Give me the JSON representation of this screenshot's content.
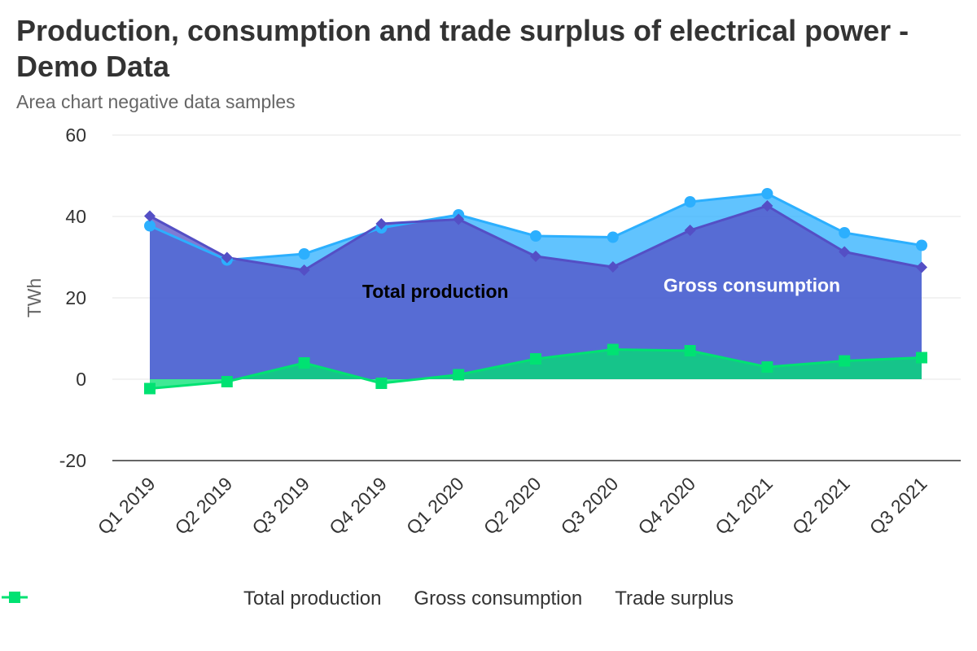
{
  "chart_data": {
    "type": "area",
    "title": "Production, consumption and trade surplus of electrical power - Demo Data",
    "subtitle": "Area chart negative data samples",
    "ylabel": "TWh",
    "ylim": [
      -20,
      60
    ],
    "yticks": [
      -20,
      0,
      20,
      40,
      60
    ],
    "categories": [
      "Q1 2019",
      "Q2 2019",
      "Q3 2019",
      "Q4 2019",
      "Q1 2020",
      "Q2 2020",
      "Q3 2020",
      "Q4 2020",
      "Q1 2021",
      "Q2 2021",
      "Q3 2021"
    ],
    "grid": true,
    "legend_position": "bottom",
    "series": [
      {
        "name": "Total production",
        "color": "#2caffe",
        "marker": "circle",
        "values": [
          37.7,
          29.3,
          30.8,
          37.2,
          40.4,
          35.2,
          34.9,
          43.6,
          45.6,
          36.0,
          32.9
        ]
      },
      {
        "name": "Gross consumption",
        "color": "#544fc5",
        "marker": "diamond",
        "values": [
          40.1,
          29.9,
          26.8,
          38.2,
          39.3,
          30.2,
          27.6,
          36.6,
          42.6,
          31.3,
          27.5
        ]
      },
      {
        "name": "Trade surplus",
        "color": "#00e272",
        "marker": "square",
        "values": [
          -2.3,
          -0.6,
          4.0,
          -1.0,
          1.1,
          5.0,
          7.3,
          7.0,
          3.0,
          4.5,
          5.3
        ]
      }
    ],
    "annotations": [
      {
        "text": "Total production",
        "x_index": 3.7,
        "y": 20,
        "color": "#000000"
      },
      {
        "text": "Gross consumption",
        "x_index": 7.8,
        "y": 21.5,
        "color": "#ffffff"
      }
    ]
  }
}
